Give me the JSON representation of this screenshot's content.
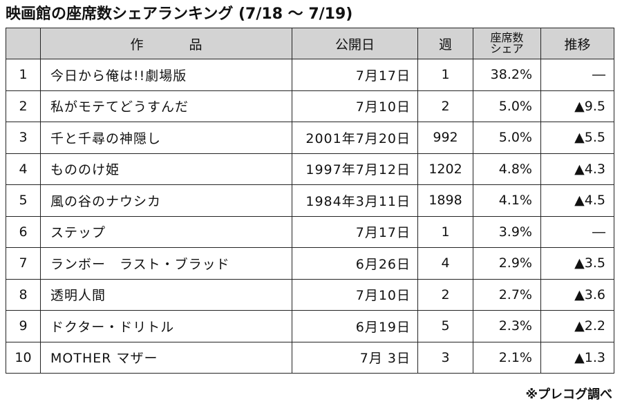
{
  "page_title": "映画館の座席数シェアランキング (7/18 〜 7/19)",
  "headers": {
    "rank": "",
    "title": "作 品",
    "release": "公開日",
    "weeks": "週",
    "share_line1": "座席数",
    "share_line2": "シェア",
    "change": "推移"
  },
  "rows": [
    {
      "rank": "1",
      "title": "今日から俺は!!劇場版",
      "release": "7月17日",
      "weeks": "1",
      "share": "38.2%",
      "change": "―"
    },
    {
      "rank": "2",
      "title": "私がモテてどうすんだ",
      "release": "7月10日",
      "weeks": "2",
      "share": "5.0%",
      "change": "▲9.5"
    },
    {
      "rank": "3",
      "title": "千と千尋の神隠し",
      "release": "2001年7月20日",
      "weeks": "992",
      "share": "5.0%",
      "change": "▲5.5"
    },
    {
      "rank": "4",
      "title": "もののけ姫",
      "release": "1997年7月12日",
      "weeks": "1202",
      "share": "4.8%",
      "change": "▲4.3"
    },
    {
      "rank": "5",
      "title": "風の谷のナウシカ",
      "release": "1984年3月11日",
      "weeks": "1898",
      "share": "4.1%",
      "change": "▲4.5"
    },
    {
      "rank": "6",
      "title": "ステップ",
      "release": "7月17日",
      "weeks": "1",
      "share": "3.9%",
      "change": "―"
    },
    {
      "rank": "7",
      "title": "ランボー　ラスト・ブラッド",
      "release": "6月26日",
      "weeks": "4",
      "share": "2.9%",
      "change": "▲3.5"
    },
    {
      "rank": "8",
      "title": "透明人間",
      "release": "7月10日",
      "weeks": "2",
      "share": "2.7%",
      "change": "▲3.6"
    },
    {
      "rank": "9",
      "title": "ドクター・ドリトル",
      "release": "6月19日",
      "weeks": "5",
      "share": "2.3%",
      "change": "▲2.2"
    },
    {
      "rank": "10",
      "title": "MOTHER マザー",
      "release": "7月 3日",
      "weeks": "3",
      "share": "2.1%",
      "change": "▲1.3"
    }
  ],
  "source_note": "※プレコグ調べ"
}
